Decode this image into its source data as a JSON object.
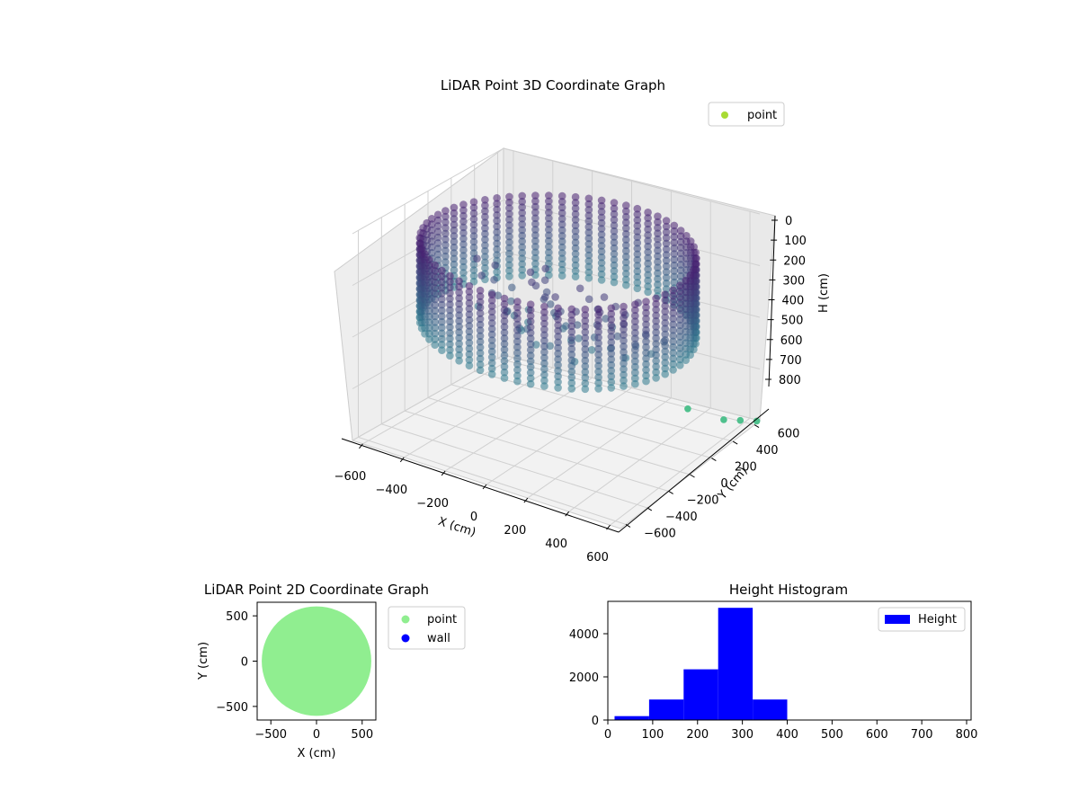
{
  "colors": {
    "point_3d_legend": "#a8db34",
    "cloud_light": "#2e7e8f",
    "cloud_dark": "#482071",
    "outlier": "#4fc08d",
    "point_2d": "#90ee90",
    "wall_2d": "#0000ff",
    "hist_bar": "#0000ff",
    "pane": "#f2f2f2",
    "grid": "#d0d0d0"
  },
  "chart_data": [
    {
      "type": "scatter",
      "projection": "3d",
      "title": "LiDAR Point 3D Coordinate Graph",
      "xlabel": "X (cm)",
      "ylabel": "Y (cm)",
      "zlabel": "H (cm)",
      "xlim": [
        -650,
        650
      ],
      "ylim": [
        -650,
        650
      ],
      "zlim": [
        800,
        0
      ],
      "x_ticks": [
        "−600",
        "−400",
        "−200",
        "0",
        "200",
        "400",
        "600"
      ],
      "y_ticks": [
        "−600",
        "−400",
        "−200",
        "0",
        "200",
        "400",
        "600"
      ],
      "z_ticks": [
        "0",
        "100",
        "200",
        "300",
        "400",
        "500",
        "600",
        "700",
        "800"
      ],
      "legend": [
        {
          "label": "point",
          "color": "#a8db34"
        }
      ],
      "legend_position": "upper right",
      "grid": true,
      "structure": "ring of points, radius ~600 cm, heights 0–400 cm",
      "outliers": [
        {
          "x": 450,
          "y": 350,
          "h": 700
        },
        {
          "x": 560,
          "y": 480,
          "h": 760
        },
        {
          "x": 600,
          "y": 560,
          "h": 780
        },
        {
          "x": 640,
          "y": 640,
          "h": 800
        }
      ]
    },
    {
      "type": "scatter",
      "title": "LiDAR Point 2D Coordinate Graph",
      "xlabel": "X (cm)",
      "ylabel": "Y (cm)",
      "xlim": [
        -650,
        650
      ],
      "ylim": [
        -650,
        650
      ],
      "x_ticks": [
        "−500",
        "0",
        "500"
      ],
      "y_ticks": [
        "−500",
        "0",
        "500"
      ],
      "series": [
        {
          "name": "point",
          "color": "#90ee90",
          "shape": "disc of radius ~600"
        },
        {
          "name": "wall",
          "color": "#0000ff"
        }
      ],
      "legend_position": "outside upper right"
    },
    {
      "type": "bar",
      "title": "Height Histogram",
      "xlim": [
        0,
        810
      ],
      "ylim": [
        0,
        5500
      ],
      "x_ticks": [
        "0",
        "100",
        "200",
        "300",
        "400",
        "500",
        "600",
        "700",
        "800"
      ],
      "y_ticks": [
        "0",
        "2000",
        "4000"
      ],
      "bins": [
        {
          "start": 15,
          "end": 92,
          "count": 180
        },
        {
          "start": 92,
          "end": 169,
          "count": 950
        },
        {
          "start": 169,
          "end": 246,
          "count": 2350
        },
        {
          "start": 246,
          "end": 323,
          "count": 5200
        },
        {
          "start": 323,
          "end": 400,
          "count": 950
        },
        {
          "start": 400,
          "end": 477,
          "count": 0
        },
        {
          "start": 477,
          "end": 554,
          "count": 0
        },
        {
          "start": 554,
          "end": 631,
          "count": 0
        },
        {
          "start": 631,
          "end": 708,
          "count": 0
        },
        {
          "start": 708,
          "end": 785,
          "count": 0
        }
      ],
      "legend": [
        {
          "label": "Height",
          "color": "#0000ff"
        }
      ],
      "legend_position": "upper right"
    }
  ]
}
